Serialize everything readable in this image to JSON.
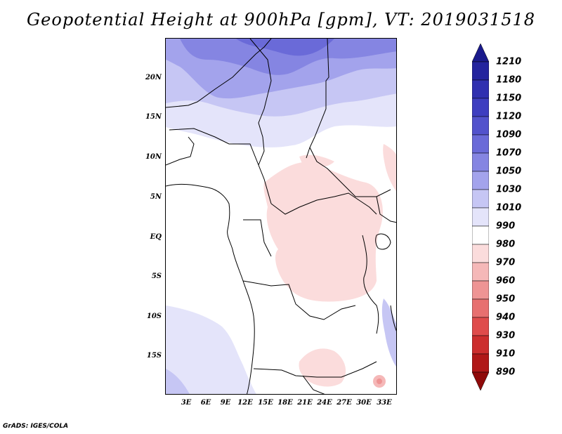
{
  "title": "Geopotential Height at 900hPa [gpm], VT: 2019031518",
  "credit": "GrADS: IGES/COLA",
  "map": {
    "lat_labels": [
      "20N",
      "15N",
      "10N",
      "5N",
      "EQ",
      "5S",
      "10S",
      "15S"
    ],
    "lon_labels": [
      "3E",
      "6E",
      "9E",
      "12E",
      "15E",
      "18E",
      "21E",
      "24E",
      "27E",
      "30E",
      "33E"
    ]
  },
  "colorbar": {
    "levels": [
      "1210",
      "1180",
      "1150",
      "1120",
      "1090",
      "1070",
      "1050",
      "1030",
      "1010",
      "990",
      "980",
      "970",
      "960",
      "950",
      "940",
      "930",
      "910",
      "890"
    ],
    "colors": [
      "#1a1a8c",
      "#24249e",
      "#3030b0",
      "#3e3ec0",
      "#5252cc",
      "#6a6ad8",
      "#8585e2",
      "#a3a3ec",
      "#c6c6f4",
      "#e4e4fa",
      "#ffffff",
      "#fbdcdc",
      "#f5b8b8",
      "#ee9494",
      "#e77070",
      "#df4c4c",
      "#cc2e2e",
      "#b01818",
      "#8f0a0a"
    ]
  }
}
